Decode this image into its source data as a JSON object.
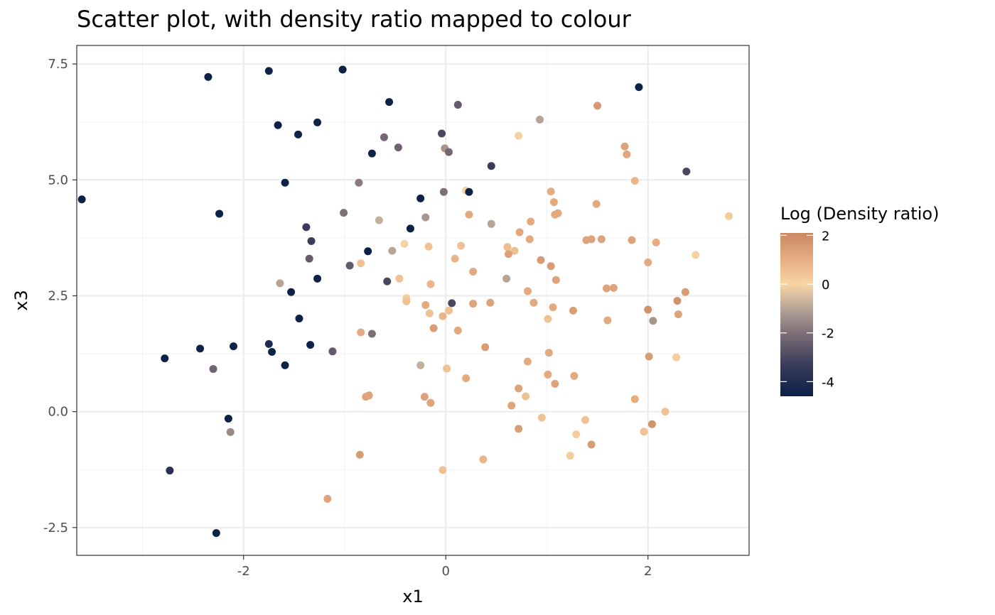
{
  "chart_data": {
    "type": "scatter",
    "title": "Scatter plot, with density ratio mapped to colour",
    "xlabel": "x1",
    "ylabel": "x3",
    "xlim": [
      -3.65,
      3.0
    ],
    "ylim": [
      -3.1,
      7.9
    ],
    "x_ticks": [
      -2,
      0,
      2
    ],
    "x_tick_labels": [
      "-2",
      "0",
      "2"
    ],
    "y_ticks": [
      -2.5,
      0,
      2.5,
      5,
      7.5
    ],
    "y_tick_labels": [
      "-2.5",
      "0.0",
      "2.5",
      "5.0",
      "7.5"
    ],
    "grid": true,
    "legend": {
      "title": "Log (Density ratio)",
      "placement": "right",
      "range": [
        -4.6,
        2.1
      ],
      "ticks": [
        2,
        0,
        -2,
        -4
      ],
      "tick_labels": [
        "2",
        "0",
        "-2",
        "-4"
      ],
      "colors": [
        {
          "value": -4.6,
          "color": "#0a2048"
        },
        {
          "value": -3.3,
          "color": "#3a3c5a"
        },
        {
          "value": -2.0,
          "color": "#7e6f77"
        },
        {
          "value": -1.0,
          "color": "#b6a597"
        },
        {
          "value": 0.0,
          "color": "#f8d5a5"
        },
        {
          "value": 1.0,
          "color": "#e6ad82"
        },
        {
          "value": 2.1,
          "color": "#c98963"
        }
      ]
    },
    "points": [
      {
        "x": -3.6,
        "y": 4.58,
        "c": -4.5
      },
      {
        "x": -2.35,
        "y": 7.22,
        "c": -4.5
      },
      {
        "x": -1.75,
        "y": 7.35,
        "c": -4.5
      },
      {
        "x": -1.02,
        "y": 7.38,
        "c": -4.5
      },
      {
        "x": -0.56,
        "y": 6.68,
        "c": -4.5
      },
      {
        "x": 0.12,
        "y": 6.62,
        "c": -2.5
      },
      {
        "x": 1.91,
        "y": 7.0,
        "c": -4.5
      },
      {
        "x": 1.5,
        "y": 6.6,
        "c": 1.6
      },
      {
        "x": -1.66,
        "y": 6.18,
        "c": -4.5
      },
      {
        "x": -1.46,
        "y": 5.98,
        "c": -4.5
      },
      {
        "x": -1.27,
        "y": 6.24,
        "c": -4.5
      },
      {
        "x": 0.93,
        "y": 6.3,
        "c": -1.0
      },
      {
        "x": 0.72,
        "y": 5.95,
        "c": 0.1
      },
      {
        "x": -0.04,
        "y": 6.0,
        "c": -3.0
      },
      {
        "x": -0.61,
        "y": 5.92,
        "c": -2.2
      },
      {
        "x": -0.73,
        "y": 5.57,
        "c": -4.5
      },
      {
        "x": -0.47,
        "y": 5.7,
        "c": -2.3
      },
      {
        "x": -0.01,
        "y": 5.68,
        "c": -1.3
      },
      {
        "x": 0.03,
        "y": 5.6,
        "c": -2.2
      },
      {
        "x": 1.77,
        "y": 5.72,
        "c": 1.3
      },
      {
        "x": 1.79,
        "y": 5.55,
        "c": 1.2
      },
      {
        "x": 0.45,
        "y": 5.3,
        "c": -3.3
      },
      {
        "x": 2.38,
        "y": 5.18,
        "c": -3.0
      },
      {
        "x": -1.59,
        "y": 4.94,
        "c": -4.5
      },
      {
        "x": -0.86,
        "y": 4.94,
        "c": -1.8
      },
      {
        "x": 1.04,
        "y": 4.75,
        "c": 1.0
      },
      {
        "x": 1.87,
        "y": 4.98,
        "c": 0.8
      },
      {
        "x": -0.02,
        "y": 4.74,
        "c": -2.0
      },
      {
        "x": 0.2,
        "y": 4.77,
        "c": 0.1
      },
      {
        "x": 0.23,
        "y": 4.74,
        "c": -4.5
      },
      {
        "x": -0.25,
        "y": 4.6,
        "c": -4.5
      },
      {
        "x": 1.07,
        "y": 4.52,
        "c": 1.1
      },
      {
        "x": 1.49,
        "y": 4.48,
        "c": 1.1
      },
      {
        "x": -2.24,
        "y": 4.27,
        "c": -4.5
      },
      {
        "x": -1.01,
        "y": 4.29,
        "c": -2.0
      },
      {
        "x": 0.23,
        "y": 4.25,
        "c": 1.1
      },
      {
        "x": 1.08,
        "y": 4.25,
        "c": 1.1
      },
      {
        "x": 1.11,
        "y": 4.28,
        "c": 1.1
      },
      {
        "x": 2.8,
        "y": 4.22,
        "c": 0.2
      },
      {
        "x": -0.2,
        "y": 4.19,
        "c": -1.3
      },
      {
        "x": -0.66,
        "y": 4.13,
        "c": -0.8
      },
      {
        "x": 0.84,
        "y": 4.1,
        "c": 1.1
      },
      {
        "x": 0.45,
        "y": 4.05,
        "c": -1.0
      },
      {
        "x": -1.38,
        "y": 3.98,
        "c": -3.3
      },
      {
        "x": -0.35,
        "y": 3.95,
        "c": -4.5
      },
      {
        "x": 0.73,
        "y": 3.87,
        "c": 1.2
      },
      {
        "x": -1.33,
        "y": 3.68,
        "c": -3.3
      },
      {
        "x": -0.41,
        "y": 3.62,
        "c": 0.1
      },
      {
        "x": -0.17,
        "y": 3.56,
        "c": 0.5
      },
      {
        "x": 0.15,
        "y": 3.58,
        "c": 0.5
      },
      {
        "x": 0.61,
        "y": 3.55,
        "c": 0.6
      },
      {
        "x": 0.83,
        "y": 3.72,
        "c": 1.1
      },
      {
        "x": 1.39,
        "y": 3.7,
        "c": 1.3
      },
      {
        "x": 1.44,
        "y": 3.72,
        "c": 1.3
      },
      {
        "x": 1.54,
        "y": 3.72,
        "c": 1.3
      },
      {
        "x": 1.84,
        "y": 3.7,
        "c": 1.3
      },
      {
        "x": 2.08,
        "y": 3.65,
        "c": 1.0
      },
      {
        "x": -0.77,
        "y": 3.46,
        "c": -4.5
      },
      {
        "x": -0.53,
        "y": 3.47,
        "c": -1.0
      },
      {
        "x": 0.68,
        "y": 3.47,
        "c": 0.6
      },
      {
        "x": 0.62,
        "y": 3.4,
        "c": 1.3
      },
      {
        "x": 2.47,
        "y": 3.38,
        "c": 0.1
      },
      {
        "x": -1.35,
        "y": 3.3,
        "c": -2.5
      },
      {
        "x": 0.09,
        "y": 3.3,
        "c": 0.8
      },
      {
        "x": 0.94,
        "y": 3.27,
        "c": 1.5
      },
      {
        "x": 2.0,
        "y": 3.22,
        "c": 1.1
      },
      {
        "x": -0.95,
        "y": 3.15,
        "c": -2.5
      },
      {
        "x": -0.84,
        "y": 3.2,
        "c": 0.5
      },
      {
        "x": 1.04,
        "y": 3.14,
        "c": 1.5
      },
      {
        "x": 0.27,
        "y": 3.02,
        "c": 1.1
      },
      {
        "x": -1.27,
        "y": 2.87,
        "c": -4.5
      },
      {
        "x": -0.46,
        "y": 2.87,
        "c": 0.5
      },
      {
        "x": 0.6,
        "y": 2.87,
        "c": -1.0
      },
      {
        "x": 1.09,
        "y": 2.84,
        "c": 1.3
      },
      {
        "x": -0.58,
        "y": 2.81,
        "c": -3.0
      },
      {
        "x": -1.64,
        "y": 2.77,
        "c": -1.0
      },
      {
        "x": -0.15,
        "y": 2.75,
        "c": 0.8
      },
      {
        "x": 1.59,
        "y": 2.66,
        "c": 1.3
      },
      {
        "x": 1.66,
        "y": 2.67,
        "c": 1.3
      },
      {
        "x": -1.53,
        "y": 2.58,
        "c": -4.5
      },
      {
        "x": 0.81,
        "y": 2.6,
        "c": 1.1
      },
      {
        "x": 2.37,
        "y": 2.58,
        "c": 1.5
      },
      {
        "x": -0.39,
        "y": 2.45,
        "c": 0.2
      },
      {
        "x": -0.39,
        "y": 2.38,
        "c": 0.5
      },
      {
        "x": 0.06,
        "y": 2.34,
        "c": -3.0
      },
      {
        "x": 0.27,
        "y": 2.33,
        "c": 1.3
      },
      {
        "x": 0.44,
        "y": 2.35,
        "c": 1.3
      },
      {
        "x": 0.87,
        "y": 2.35,
        "c": 1.1
      },
      {
        "x": 2.29,
        "y": 2.39,
        "c": 1.8
      },
      {
        "x": -0.2,
        "y": 2.3,
        "c": 1.1
      },
      {
        "x": 1.06,
        "y": 2.25,
        "c": 1.1
      },
      {
        "x": -0.16,
        "y": 2.12,
        "c": 0.5
      },
      {
        "x": 0.03,
        "y": 2.18,
        "c": 0.5
      },
      {
        "x": 1.26,
        "y": 2.18,
        "c": 1.5
      },
      {
        "x": 2.0,
        "y": 2.2,
        "c": 1.8
      },
      {
        "x": 2.3,
        "y": 2.1,
        "c": 1.3
      },
      {
        "x": -1.45,
        "y": 2.01,
        "c": -4.5
      },
      {
        "x": -0.03,
        "y": 2.06,
        "c": 0.8
      },
      {
        "x": 1.01,
        "y": 2.0,
        "c": 0.5
      },
      {
        "x": 1.6,
        "y": 1.97,
        "c": 1.1
      },
      {
        "x": 2.05,
        "y": 1.96,
        "c": -1.3
      },
      {
        "x": -0.12,
        "y": 1.8,
        "c": 1.5
      },
      {
        "x": 0.12,
        "y": 1.75,
        "c": 1.1
      },
      {
        "x": -0.84,
        "y": 1.71,
        "c": 1.1
      },
      {
        "x": -0.73,
        "y": 1.68,
        "c": -2.0
      },
      {
        "x": -1.75,
        "y": 1.46,
        "c": -4.0
      },
      {
        "x": -1.34,
        "y": 1.44,
        "c": -4.5
      },
      {
        "x": -2.1,
        "y": 1.41,
        "c": -4.5
      },
      {
        "x": -2.43,
        "y": 1.36,
        "c": -4.5
      },
      {
        "x": -1.72,
        "y": 1.29,
        "c": -4.5
      },
      {
        "x": -1.12,
        "y": 1.3,
        "c": -2.5
      },
      {
        "x": 0.39,
        "y": 1.39,
        "c": 1.5
      },
      {
        "x": 1.02,
        "y": 1.27,
        "c": 1.1
      },
      {
        "x": 2.01,
        "y": 1.19,
        "c": 1.5
      },
      {
        "x": -2.78,
        "y": 1.15,
        "c": -4.5
      },
      {
        "x": 0.81,
        "y": 1.08,
        "c": 1.1
      },
      {
        "x": 2.28,
        "y": 1.17,
        "c": 0.2
      },
      {
        "x": -1.59,
        "y": 1.0,
        "c": -4.5
      },
      {
        "x": -0.25,
        "y": 1.0,
        "c": -0.8
      },
      {
        "x": 0.01,
        "y": 0.93,
        "c": 0.5
      },
      {
        "x": -2.3,
        "y": 0.92,
        "c": -2.3
      },
      {
        "x": 1.01,
        "y": 0.8,
        "c": 1.1
      },
      {
        "x": 1.27,
        "y": 0.77,
        "c": 1.1
      },
      {
        "x": 0.2,
        "y": 0.72,
        "c": 1.1
      },
      {
        "x": 1.08,
        "y": 0.6,
        "c": 1.3
      },
      {
        "x": 0.72,
        "y": 0.5,
        "c": 1.3
      },
      {
        "x": -0.79,
        "y": 0.32,
        "c": 1.3
      },
      {
        "x": -0.76,
        "y": 0.35,
        "c": 1.3
      },
      {
        "x": -0.21,
        "y": 0.32,
        "c": 1.3
      },
      {
        "x": 0.79,
        "y": 0.33,
        "c": 0.5
      },
      {
        "x": 1.87,
        "y": 0.27,
        "c": 1.0
      },
      {
        "x": -0.15,
        "y": 0.19,
        "c": 1.3
      },
      {
        "x": 0.65,
        "y": 0.13,
        "c": 1.3
      },
      {
        "x": 2.17,
        "y": 0.0,
        "c": 0.5
      },
      {
        "x": -2.15,
        "y": -0.15,
        "c": -4.5
      },
      {
        "x": 0.95,
        "y": -0.13,
        "c": 0.5
      },
      {
        "x": 1.38,
        "y": -0.18,
        "c": 0.5
      },
      {
        "x": 2.04,
        "y": -0.27,
        "c": 1.8
      },
      {
        "x": -2.13,
        "y": -0.44,
        "c": -1.5
      },
      {
        "x": 0.72,
        "y": -0.37,
        "c": 1.5
      },
      {
        "x": 1.29,
        "y": -0.49,
        "c": 0.2
      },
      {
        "x": 1.96,
        "y": -0.43,
        "c": 0.5
      },
      {
        "x": 1.44,
        "y": -0.71,
        "c": 1.5
      },
      {
        "x": -0.85,
        "y": -0.93,
        "c": 1.5
      },
      {
        "x": 1.23,
        "y": -0.95,
        "c": 0.2
      },
      {
        "x": 0.37,
        "y": -1.03,
        "c": 0.8
      },
      {
        "x": -2.73,
        "y": -1.27,
        "c": -3.8
      },
      {
        "x": -0.03,
        "y": -1.26,
        "c": 0.5
      },
      {
        "x": -1.17,
        "y": -1.88,
        "c": 1.3
      },
      {
        "x": -2.27,
        "y": -2.62,
        "c": -4.5
      }
    ]
  }
}
